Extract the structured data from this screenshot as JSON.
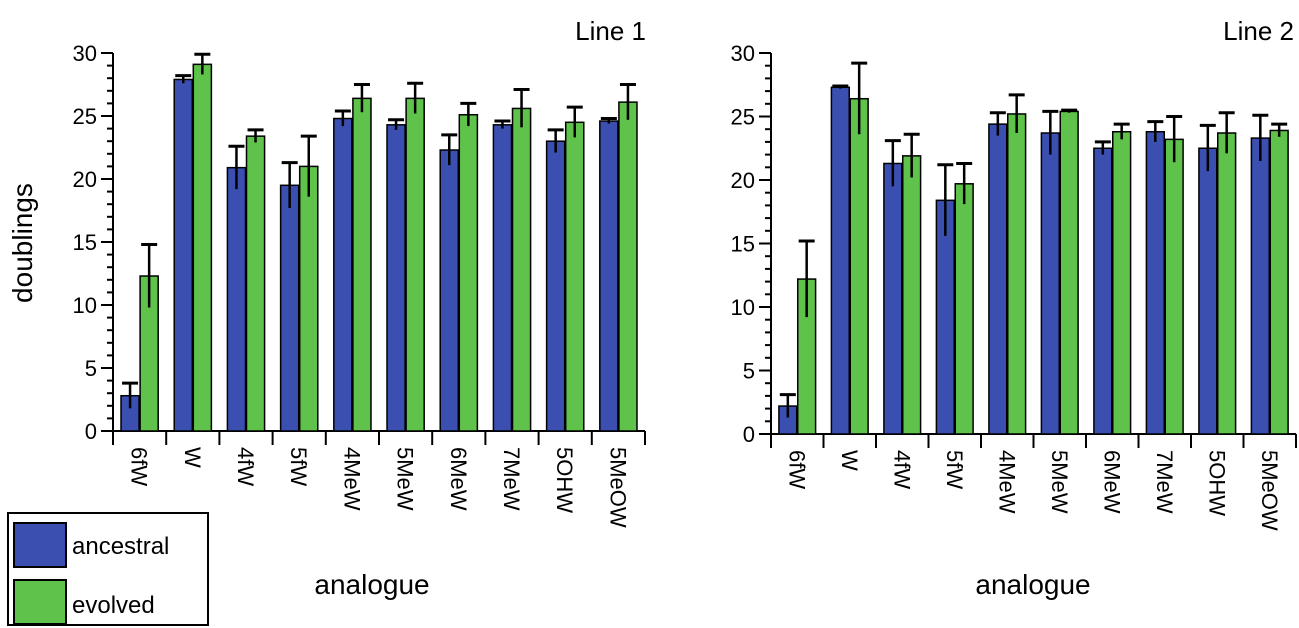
{
  "legend": {
    "items": [
      {
        "label": "ancestral",
        "color": "#3a4fb0"
      },
      {
        "label": "evolved",
        "color": "#5fc24a"
      }
    ]
  },
  "colors": {
    "ancestral": "#3a4fb0",
    "evolved": "#5fc24a",
    "error_bar": "#000000"
  },
  "chart_data": [
    {
      "type": "bar",
      "title": "Line 1",
      "xlabel": "analogue",
      "ylabel": "doublings",
      "ylim": [
        0,
        30
      ],
      "yticks": [
        "0",
        "5",
        "10",
        "15",
        "20",
        "25",
        "30"
      ],
      "categories": [
        "6fW",
        "W",
        "4fW",
        "5fW",
        "4MeW",
        "5MeW",
        "6MeW",
        "7MeW",
        "5OHW",
        "5MeOW"
      ],
      "series": [
        {
          "name": "ancestral",
          "values": [
            2.8,
            27.9,
            20.9,
            19.5,
            24.8,
            24.3,
            22.3,
            24.3,
            23.0,
            24.6
          ],
          "errors": [
            1.0,
            0.3,
            1.7,
            1.8,
            0.6,
            0.4,
            1.2,
            0.3,
            0.9,
            0.2
          ]
        },
        {
          "name": "evolved",
          "values": [
            12.3,
            29.1,
            23.4,
            21.0,
            26.4,
            26.4,
            25.1,
            25.6,
            24.5,
            26.1
          ],
          "errors": [
            2.5,
            0.8,
            0.5,
            2.4,
            1.1,
            1.2,
            0.9,
            1.5,
            1.2,
            1.4
          ]
        }
      ]
    },
    {
      "type": "bar",
      "title": "Line 2",
      "xlabel": "analogue",
      "ylabel": "",
      "ylim": [
        0,
        30
      ],
      "yticks": [
        "0",
        "5",
        "10",
        "15",
        "20",
        "25",
        "30"
      ],
      "categories": [
        "6fW",
        "W",
        "4fW",
        "5fW",
        "4MeW",
        "5MeW",
        "6MeW",
        "7MeW",
        "5OHW",
        "5MeOW"
      ],
      "series": [
        {
          "name": "ancestral",
          "values": [
            2.2,
            27.3,
            21.3,
            18.4,
            24.4,
            23.7,
            22.5,
            23.8,
            22.5,
            23.3
          ],
          "errors": [
            0.9,
            0.1,
            1.8,
            2.8,
            0.9,
            1.7,
            0.5,
            0.8,
            1.8,
            1.8
          ]
        },
        {
          "name": "evolved",
          "values": [
            12.2,
            26.4,
            21.9,
            19.7,
            25.2,
            25.4,
            23.8,
            23.2,
            23.7,
            23.9
          ],
          "errors": [
            3.0,
            2.8,
            1.7,
            1.6,
            1.5,
            0.1,
            0.6,
            1.8,
            1.6,
            0.5
          ]
        }
      ]
    }
  ]
}
